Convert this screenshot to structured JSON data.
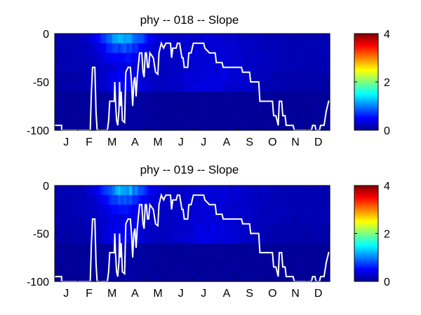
{
  "chart_data": [
    {
      "type": "heatmap",
      "title": "phy -- 018 -- Slope",
      "xlabel": "",
      "ylabel": "",
      "x_tick_labels": [
        "J",
        "F",
        "M",
        "A",
        "M",
        "J",
        "J",
        "A",
        "S",
        "O",
        "N",
        "D"
      ],
      "y_tick_labels": [
        "0",
        "-50",
        "-100"
      ],
      "y_ticks": [
        0,
        -50,
        -100
      ],
      "ylim": [
        -100,
        0
      ],
      "colorbar": {
        "ticks": [
          "0",
          "2",
          "4"
        ],
        "range": [
          0,
          4
        ],
        "colormap": "jet"
      },
      "line_color": "#ffffff",
      "line_points": [
        [
          0,
          -95
        ],
        [
          0.3,
          -95
        ],
        [
          0.3,
          -100
        ],
        [
          1.55,
          -100
        ],
        [
          1.6,
          -60
        ],
        [
          1.65,
          -35
        ],
        [
          1.75,
          -35
        ],
        [
          1.8,
          -80
        ],
        [
          1.85,
          -100
        ],
        [
          2.3,
          -100
        ],
        [
          2.35,
          -90
        ],
        [
          2.4,
          -70
        ],
        [
          2.6,
          -70
        ],
        [
          2.62,
          -50
        ],
        [
          2.65,
          -70
        ],
        [
          2.7,
          -90
        ],
        [
          2.75,
          -95
        ],
        [
          2.8,
          -80
        ],
        [
          2.83,
          -50
        ],
        [
          2.86,
          -75
        ],
        [
          2.9,
          -60
        ],
        [
          2.95,
          -90
        ],
        [
          3.05,
          -92
        ],
        [
          3.1,
          -40
        ],
        [
          3.2,
          -35
        ],
        [
          3.3,
          -35
        ],
        [
          3.35,
          -50
        ],
        [
          3.4,
          -75
        ],
        [
          3.45,
          -50
        ],
        [
          3.5,
          -45
        ],
        [
          3.55,
          -65
        ],
        [
          3.6,
          -45
        ],
        [
          3.7,
          -20
        ],
        [
          3.8,
          -20
        ],
        [
          3.85,
          -40
        ],
        [
          3.9,
          -45
        ],
        [
          3.95,
          -20
        ],
        [
          4.0,
          -20
        ],
        [
          4.05,
          -35
        ],
        [
          4.1,
          -35
        ],
        [
          4.15,
          -20
        ],
        [
          4.3,
          -25
        ],
        [
          4.4,
          -40
        ],
        [
          4.5,
          -42
        ],
        [
          4.55,
          -20
        ],
        [
          4.65,
          -10
        ],
        [
          4.75,
          -15
        ],
        [
          4.85,
          -10
        ],
        [
          5.05,
          -10
        ],
        [
          5.1,
          -25
        ],
        [
          5.15,
          -15
        ],
        [
          5.3,
          -15
        ],
        [
          5.35,
          -10
        ],
        [
          5.45,
          -10
        ],
        [
          5.55,
          -25
        ],
        [
          5.6,
          -25
        ],
        [
          5.65,
          -35
        ],
        [
          5.8,
          -35
        ],
        [
          5.85,
          -20
        ],
        [
          5.95,
          -20
        ],
        [
          6.05,
          -10
        ],
        [
          6.5,
          -10
        ],
        [
          6.55,
          -15
        ],
        [
          6.75,
          -20
        ],
        [
          7.0,
          -20
        ],
        [
          7.05,
          -30
        ],
        [
          7.3,
          -30
        ],
        [
          7.35,
          -35
        ],
        [
          8.15,
          -35
        ],
        [
          8.2,
          -40
        ],
        [
          8.5,
          -40
        ],
        [
          8.55,
          -50
        ],
        [
          8.9,
          -50
        ],
        [
          8.95,
          -70
        ],
        [
          9.5,
          -70
        ],
        [
          9.55,
          -85
        ],
        [
          9.65,
          -85
        ],
        [
          9.7,
          -90
        ],
        [
          9.75,
          -95
        ],
        [
          9.8,
          -70
        ],
        [
          9.9,
          -70
        ],
        [
          9.95,
          -85
        ],
        [
          10.05,
          -85
        ],
        [
          10.1,
          -95
        ],
        [
          10.4,
          -95
        ],
        [
          10.45,
          -100
        ],
        [
          11.2,
          -100
        ],
        [
          11.25,
          -95
        ],
        [
          11.35,
          -95
        ],
        [
          11.4,
          -100
        ],
        [
          11.55,
          -100
        ],
        [
          11.6,
          -95
        ],
        [
          11.75,
          -95
        ],
        [
          11.85,
          -80
        ],
        [
          11.95,
          -70
        ],
        [
          12.0,
          -70
        ]
      ]
    },
    {
      "type": "heatmap",
      "title": "phy -- 019 -- Slope",
      "xlabel": "",
      "ylabel": "",
      "x_tick_labels": [
        "J",
        "F",
        "M",
        "A",
        "M",
        "J",
        "J",
        "A",
        "S",
        "O",
        "N",
        "D"
      ],
      "y_tick_labels": [
        "0",
        "-50",
        "-100"
      ],
      "y_ticks": [
        0,
        -50,
        -100
      ],
      "ylim": [
        -100,
        0
      ],
      "colorbar": {
        "ticks": [
          "0",
          "2",
          "4"
        ],
        "range": [
          0,
          4
        ],
        "colormap": "jet"
      },
      "line_color": "#ffffff",
      "line_points": [
        [
          0,
          -95
        ],
        [
          0.3,
          -95
        ],
        [
          0.3,
          -100
        ],
        [
          1.55,
          -100
        ],
        [
          1.6,
          -60
        ],
        [
          1.65,
          -35
        ],
        [
          1.75,
          -35
        ],
        [
          1.8,
          -80
        ],
        [
          1.85,
          -100
        ],
        [
          2.3,
          -100
        ],
        [
          2.35,
          -90
        ],
        [
          2.4,
          -70
        ],
        [
          2.6,
          -70
        ],
        [
          2.62,
          -50
        ],
        [
          2.65,
          -70
        ],
        [
          2.7,
          -90
        ],
        [
          2.75,
          -95
        ],
        [
          2.8,
          -80
        ],
        [
          2.83,
          -50
        ],
        [
          2.86,
          -75
        ],
        [
          2.9,
          -60
        ],
        [
          2.95,
          -90
        ],
        [
          3.05,
          -92
        ],
        [
          3.1,
          -40
        ],
        [
          3.2,
          -35
        ],
        [
          3.3,
          -35
        ],
        [
          3.35,
          -50
        ],
        [
          3.4,
          -75
        ],
        [
          3.45,
          -50
        ],
        [
          3.5,
          -45
        ],
        [
          3.55,
          -65
        ],
        [
          3.6,
          -45
        ],
        [
          3.7,
          -20
        ],
        [
          3.8,
          -20
        ],
        [
          3.85,
          -40
        ],
        [
          3.9,
          -45
        ],
        [
          3.95,
          -20
        ],
        [
          4.0,
          -20
        ],
        [
          4.05,
          -35
        ],
        [
          4.1,
          -35
        ],
        [
          4.15,
          -20
        ],
        [
          4.3,
          -25
        ],
        [
          4.4,
          -40
        ],
        [
          4.5,
          -42
        ],
        [
          4.55,
          -20
        ],
        [
          4.65,
          -10
        ],
        [
          4.75,
          -15
        ],
        [
          4.85,
          -10
        ],
        [
          5.05,
          -10
        ],
        [
          5.1,
          -25
        ],
        [
          5.15,
          -15
        ],
        [
          5.3,
          -15
        ],
        [
          5.35,
          -10
        ],
        [
          5.45,
          -10
        ],
        [
          5.55,
          -25
        ],
        [
          5.6,
          -25
        ],
        [
          5.65,
          -35
        ],
        [
          5.8,
          -35
        ],
        [
          5.85,
          -20
        ],
        [
          5.95,
          -20
        ],
        [
          6.05,
          -10
        ],
        [
          6.5,
          -10
        ],
        [
          6.55,
          -15
        ],
        [
          6.75,
          -20
        ],
        [
          7.0,
          -20
        ],
        [
          7.05,
          -30
        ],
        [
          7.3,
          -30
        ],
        [
          7.35,
          -35
        ],
        [
          8.15,
          -35
        ],
        [
          8.2,
          -40
        ],
        [
          8.5,
          -40
        ],
        [
          8.55,
          -50
        ],
        [
          8.9,
          -50
        ],
        [
          8.95,
          -70
        ],
        [
          9.5,
          -70
        ],
        [
          9.55,
          -85
        ],
        [
          9.65,
          -85
        ],
        [
          9.7,
          -90
        ],
        [
          9.75,
          -95
        ],
        [
          9.8,
          -70
        ],
        [
          9.9,
          -70
        ],
        [
          9.95,
          -85
        ],
        [
          10.05,
          -85
        ],
        [
          10.1,
          -95
        ],
        [
          10.4,
          -95
        ],
        [
          10.45,
          -100
        ],
        [
          11.2,
          -100
        ],
        [
          11.25,
          -95
        ],
        [
          11.35,
          -95
        ],
        [
          11.4,
          -100
        ],
        [
          11.55,
          -100
        ],
        [
          11.6,
          -95
        ],
        [
          11.75,
          -95
        ],
        [
          11.85,
          -80
        ],
        [
          11.95,
          -70
        ],
        [
          12.0,
          -70
        ]
      ]
    }
  ]
}
